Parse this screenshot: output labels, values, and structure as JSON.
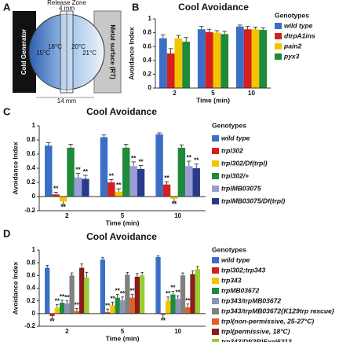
{
  "diagram": {
    "panel": "A",
    "cold_generator": "Cold Generator",
    "metal_surface": "Metal surface (RT)",
    "release_zone": "Release Zone",
    "zone_width": "4 mm",
    "width": "14 mm",
    "temperatures": [
      "15°C",
      "18°C",
      "20°C",
      "21°C"
    ]
  },
  "chart_data": [
    {
      "type": "bar",
      "panel": "B",
      "title": "Cool Avoidance",
      "ylabel": "Avoidance Index",
      "xlabel": "Time (min)",
      "legend_title": "Genotypes",
      "categories": [
        "2",
        "5",
        "10"
      ],
      "ylim": [
        0,
        1
      ],
      "yticks": [
        0,
        0.2,
        0.4,
        0.6,
        0.8,
        1
      ],
      "series": [
        {
          "name": "wild type",
          "color": "#3b6fc6",
          "values": [
            0.72,
            0.85,
            0.89
          ],
          "errors": [
            0.05,
            0.04,
            0.02
          ]
        },
        {
          "name": "dtrpA1ins",
          "color": "#d42020",
          "values": [
            0.5,
            0.81,
            0.85
          ],
          "errors": [
            0.07,
            0.04,
            0.04
          ]
        },
        {
          "name": "pain2",
          "color": "#f5c400",
          "values": [
            0.72,
            0.8,
            0.85
          ],
          "errors": [
            0.04,
            0.03,
            0.03
          ]
        },
        {
          "name": "pyx3",
          "color": "#1f8a3a",
          "values": [
            0.67,
            0.78,
            0.84
          ],
          "errors": [
            0.06,
            0.04,
            0.03
          ]
        }
      ]
    },
    {
      "type": "bar",
      "panel": "C",
      "title": "Cool Avoidance",
      "ylabel": "Avoidance Index",
      "xlabel": "Time (min)",
      "legend_title": "Genotypes",
      "categories": [
        "2",
        "5",
        "10"
      ],
      "ylim": [
        -0.2,
        1
      ],
      "yticks": [
        -0.2,
        0,
        0.2,
        0.4,
        0.6,
        0.8,
        1
      ],
      "series": [
        {
          "name": "wild type",
          "color": "#3b6fc6",
          "values": [
            0.72,
            0.84,
            0.88
          ],
          "errors": [
            0.04,
            0.03,
            0.02
          ]
        },
        {
          "name": "trpl302",
          "color": "#d42020",
          "values": [
            0.03,
            0.2,
            0.17
          ],
          "errors": [
            0.03,
            0.04,
            0.04
          ],
          "annotations": [
            "**",
            "**",
            "**"
          ]
        },
        {
          "name": "trpl302/Df(trpl)",
          "color": "#f5c400",
          "values": [
            -0.07,
            0.07,
            -0.03
          ],
          "errors": [
            0.04,
            0.04,
            0.04
          ],
          "annotations": [
            "**",
            "**",
            "**"
          ]
        },
        {
          "name": "trpl302/+",
          "color": "#1f8a3a",
          "values": [
            0.69,
            0.69,
            0.69
          ],
          "errors": [
            0.05,
            0.05,
            0.04
          ]
        },
        {
          "name": "trplMB03075",
          "color": "#9b9bd6",
          "values": [
            0.27,
            0.43,
            0.43
          ],
          "errors": [
            0.06,
            0.06,
            0.07
          ],
          "annotations": [
            "**",
            "**",
            "**"
          ]
        },
        {
          "name": "trplMB03075/Df(trpl)",
          "color": "#2a3a8a",
          "values": [
            0.25,
            0.39,
            0.4
          ],
          "errors": [
            0.05,
            0.05,
            0.06
          ],
          "annotations": [
            "**",
            "**",
            "**"
          ]
        }
      ]
    },
    {
      "type": "bar",
      "panel": "D",
      "title": "Cool Avoidance",
      "ylabel": "Avoidance Index",
      "xlabel": "Time (min)",
      "legend_title": "Genotypes",
      "categories": [
        "2",
        "5",
        "10"
      ],
      "ylim": [
        -0.2,
        1
      ],
      "yticks": [
        -0.2,
        0,
        0.2,
        0.4,
        0.6,
        0.8,
        1
      ],
      "series": [
        {
          "name": "wild type",
          "color": "#3b6fc6",
          "values": [
            0.72,
            0.85,
            0.89
          ],
          "errors": [
            0.04,
            0.03,
            0.02
          ]
        },
        {
          "name": "trpl302;trp343",
          "color": "#d42020",
          "values": [
            -0.04,
            0.02,
            -0.02
          ],
          "errors": [
            0.04,
            0.05,
            0.05
          ],
          "annotations": [
            "**",
            "**",
            "**"
          ]
        },
        {
          "name": "trp343",
          "color": "#f5c400",
          "values": [
            0.09,
            0.13,
            0.2
          ],
          "errors": [
            0.05,
            0.05,
            0.06
          ],
          "annotations": [
            "**",
            "**",
            "**"
          ]
        },
        {
          "name": "trpMB03672",
          "color": "#1f8a3a",
          "values": [
            0.17,
            0.25,
            0.3
          ],
          "errors": [
            0.04,
            0.05,
            0.05
          ],
          "annotations": [
            "**",
            "**",
            "**"
          ]
        },
        {
          "name": "trp343/trpMB03672",
          "color": "#8b93b8",
          "values": [
            0.16,
            0.21,
            0.23
          ],
          "errors": [
            0.04,
            0.05,
            0.05
          ],
          "annotations": [
            "**",
            "**",
            "**"
          ]
        },
        {
          "name": "trp343/trpMB03672{K129trp rescue}",
          "color": "#808080",
          "values": [
            0.6,
            0.61,
            0.6
          ],
          "errors": [
            0.04,
            0.04,
            0.04
          ]
        },
        {
          "name": "trpl(non-permissive, 25-27°C)",
          "color": "#e06020",
          "values": [
            0.04,
            0.25,
            0.1
          ],
          "errors": [
            0.04,
            0.05,
            0.05
          ],
          "annotations": [
            "**",
            "**",
            "**"
          ]
        },
        {
          "name": "trpl(permissive, 18°C)",
          "color": "#8b1a1a",
          "values": [
            0.72,
            0.58,
            0.62
          ],
          "errors": [
            0.06,
            0.05,
            0.05
          ]
        },
        {
          "name": "trp343/Df(3R)Exel6213",
          "color": "#9acd32",
          "values": [
            0.57,
            0.6,
            0.7
          ],
          "errors": [
            0.08,
            0.05,
            0.04
          ]
        }
      ]
    }
  ]
}
